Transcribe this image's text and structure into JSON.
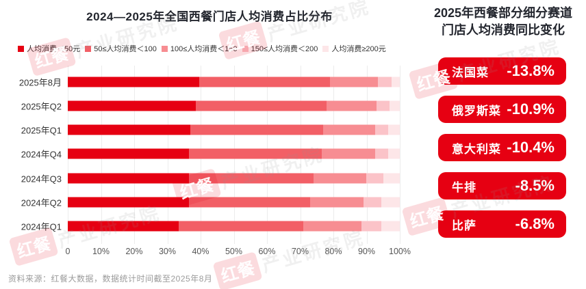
{
  "chart_data": {
    "type": "bar",
    "orientation": "horizontal",
    "stacked": true,
    "unit": "%",
    "title": "2024—2025年全国西餐门店人均消费占比分布",
    "categories": [
      "2025年8月",
      "2025年Q2",
      "2025年Q1",
      "2024年Q4",
      "2024年Q3",
      "2024年Q2",
      "2024年Q1"
    ],
    "series": [
      {
        "name": "人均消费＜50元",
        "color": "#e60012",
        "values": [
          39.5,
          38.5,
          37.0,
          36.5,
          36.5,
          36.5,
          33.5
        ]
      },
      {
        "name": "50≤人均消费＜100",
        "color": "#f25f66",
        "values": [
          39.5,
          39.5,
          40.0,
          40.0,
          37.5,
          36.5,
          37.5
        ]
      },
      {
        "name": "100≤人均消费＜150",
        "color": "#f78d92",
        "values": [
          14.5,
          15.0,
          15.5,
          16.0,
          16.0,
          16.0,
          17.5
        ]
      },
      {
        "name": "150≤人均消费＜200",
        "color": "#fbc3c8",
        "values": [
          4.0,
          4.0,
          4.0,
          4.0,
          5.0,
          5.5,
          6.0
        ]
      },
      {
        "name": "人均消费≥200元",
        "color": "#fde6e8",
        "values": [
          2.5,
          3.0,
          3.5,
          3.5,
          5.0,
          5.5,
          5.5
        ]
      }
    ],
    "x_ticks": [
      "0",
      "10%",
      "20%",
      "30%",
      "40%",
      "50%",
      "60%",
      "70%",
      "80%",
      "90%",
      "100%"
    ],
    "xlim": [
      0,
      100
    ],
    "grid": true,
    "legend_position": "top"
  },
  "right_panel": {
    "title_line1": "2025年西餐部分细分赛道",
    "title_line2": "门店人均消费同比变化",
    "badge_color": "#e60012",
    "items": [
      {
        "label": "法国菜",
        "value": "-13.8%"
      },
      {
        "label": "俄罗斯菜",
        "value": "-10.9%"
      },
      {
        "label": "意大利菜",
        "value": "-10.4%"
      },
      {
        "label": "牛排",
        "value": "-8.5%"
      },
      {
        "label": "比萨",
        "value": "-6.8%"
      }
    ]
  },
  "footer": {
    "source": "资料来源：红餐大数据，数据统计时间截至2025年8月"
  },
  "watermark": {
    "logo_text": "红餐",
    "text": "产业研究院"
  },
  "colors": {
    "accent_red": "#e60012",
    "title_text": "#23262e",
    "axis_text": "#555555",
    "category_text": "#333333",
    "source_text": "#9b9b9b",
    "gridline": "#ececec"
  }
}
